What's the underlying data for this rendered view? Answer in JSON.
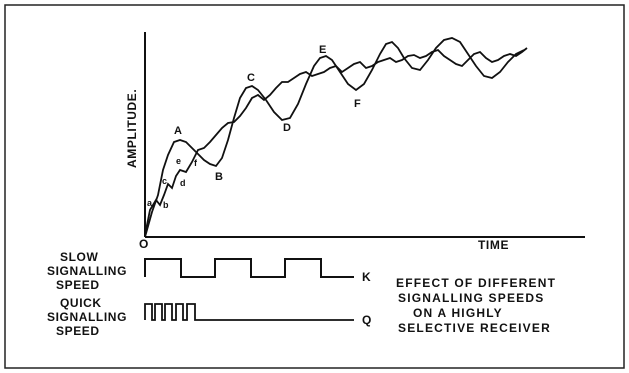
{
  "figure": {
    "axis_y_label": "AMPLITUDE.",
    "axis_x_label": "TIME",
    "origin_label": "O",
    "curve_points": {
      "A": "A",
      "B": "B",
      "C": "C",
      "D": "D",
      "E": "E",
      "F": "F",
      "a": "a",
      "b": "b",
      "c": "c",
      "d": "d",
      "e": "e",
      "f": "f"
    },
    "slow_label": [
      "SLOW",
      "SIGNALLING",
      "SPEED"
    ],
    "quick_label": [
      "QUICK",
      "SIGNALLING",
      "SPEED"
    ],
    "slow_marker": "K",
    "quick_marker": "Q",
    "caption": [
      "EFFECT OF DIFFERENT",
      "SIGNALLING SPEEDS",
      "ON A HIGHLY",
      "SELECTIVE RECEIVER"
    ]
  }
}
